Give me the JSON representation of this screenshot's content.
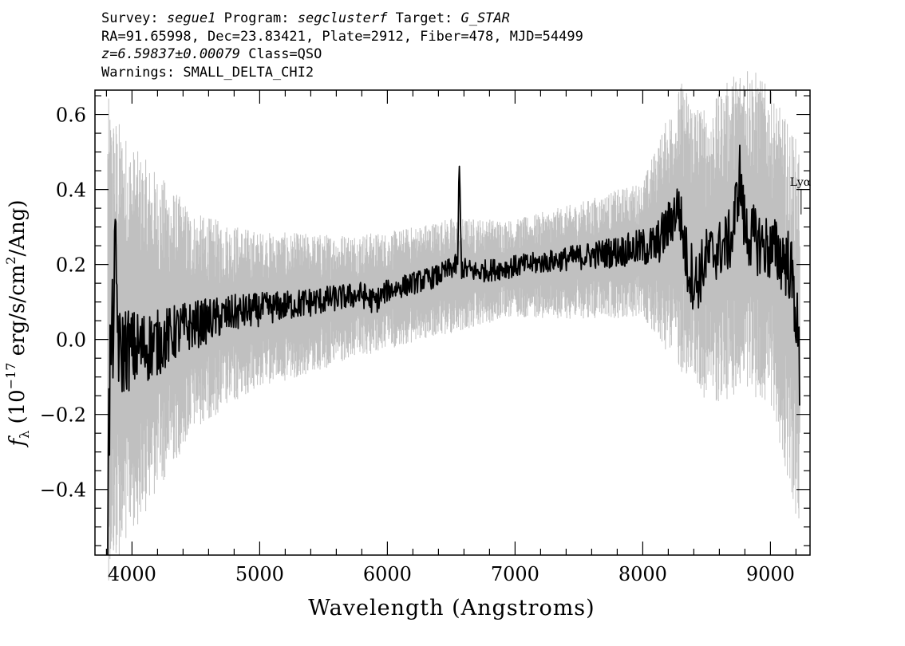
{
  "header": {
    "survey_label": "Survey:",
    "survey_value": "segue1",
    "program_label": "Program:",
    "program_value": "segclusterf",
    "target_label": "Target:",
    "target_value": "G_STAR",
    "coords_line": "RA=91.65998, Dec=23.83421, Plate=2912, Fiber=478, MJD=54499",
    "redshift_value": "z=6.59837±0.00079",
    "class_text": "Class=QSO",
    "warnings_line": "Warnings: SMALL_DELTA_CHI2"
  },
  "chart_data": {
    "type": "line",
    "xlabel": "Wavelength (Angstroms)",
    "ylabel": "f_λ (10^-17 erg/s/cm²/Ang)",
    "ylabel_parts": {
      "sym": "f",
      "sub": "λ",
      "open": " (10",
      "exp": "−17",
      "mid": " erg/s/cm",
      "sup2": "2",
      "end": "/Ang)"
    },
    "xlim": [
      3710,
      9310
    ],
    "ylim": [
      -0.575,
      0.665
    ],
    "x_ticks": [
      4000,
      5000,
      6000,
      7000,
      8000,
      9000
    ],
    "x_tick_labels": [
      "4000",
      "5000",
      "6000",
      "7000",
      "8000",
      "9000"
    ],
    "y_ticks": [
      -0.4,
      -0.2,
      0.0,
      0.2,
      0.4,
      0.6
    ],
    "y_tick_labels": [
      "−0.4",
      "−0.2",
      "0.0",
      "0.2",
      "0.4",
      "0.6"
    ],
    "grid": false,
    "line_annotation": {
      "label": "Lyα",
      "wavelength": 9240,
      "y": 0.41
    },
    "series": [
      {
        "role": "flux",
        "color": "#000000",
        "x": [
          3810,
          3830,
          3850,
          3870,
          3900,
          3950,
          4000,
          4100,
          4200,
          4300,
          4400,
          4500,
          4600,
          4800,
          5000,
          5200,
          5400,
          5600,
          5800,
          5900,
          6000,
          6200,
          6400,
          6550,
          6563,
          6580,
          6700,
          6900,
          7100,
          7300,
          7500,
          7700,
          7900,
          8100,
          8200,
          8280,
          8350,
          8420,
          8500,
          8600,
          8700,
          8760,
          8800,
          8900,
          9000,
          9100,
          9150,
          9200,
          9230
        ],
        "y": [
          -0.42,
          -0.05,
          0.02,
          0.22,
          -0.05,
          -0.02,
          -0.03,
          -0.02,
          -0.01,
          0.01,
          0.03,
          0.04,
          0.05,
          0.07,
          0.08,
          0.09,
          0.1,
          0.11,
          0.12,
          0.1,
          0.13,
          0.15,
          0.17,
          0.2,
          0.47,
          0.19,
          0.18,
          0.19,
          0.2,
          0.21,
          0.22,
          0.23,
          0.24,
          0.25,
          0.3,
          0.36,
          0.2,
          0.15,
          0.22,
          0.24,
          0.27,
          0.44,
          0.29,
          0.26,
          0.24,
          0.22,
          0.2,
          0.08,
          -0.1
        ],
        "noise": [
          0.2,
          0.17,
          0.15,
          0.14,
          0.13,
          0.12,
          0.11,
          0.1,
          0.09,
          0.08,
          0.07,
          0.065,
          0.06,
          0.05,
          0.045,
          0.04,
          0.04,
          0.035,
          0.035,
          0.035,
          0.03,
          0.03,
          0.03,
          0.03,
          0.03,
          0.03,
          0.03,
          0.03,
          0.03,
          0.03,
          0.035,
          0.04,
          0.045,
          0.06,
          0.07,
          0.07,
          0.09,
          0.09,
          0.08,
          0.08,
          0.085,
          0.09,
          0.09,
          0.09,
          0.09,
          0.1,
          0.1,
          0.11,
          0.12
        ]
      },
      {
        "role": "model/error band",
        "color": "#c0c0c0",
        "x": [
          3810,
          3900,
          4000,
          4500,
          5000,
          5500,
          6000,
          6500,
          7000,
          7500,
          8000,
          8300,
          8500,
          8800,
          9000,
          9230
        ],
        "y": [
          0.0,
          0.0,
          0.0,
          0.05,
          0.08,
          0.1,
          0.13,
          0.17,
          0.19,
          0.21,
          0.24,
          0.3,
          0.22,
          0.3,
          0.25,
          0.0
        ],
        "width": [
          0.5,
          0.45,
          0.4,
          0.22,
          0.16,
          0.14,
          0.12,
          0.12,
          0.1,
          0.12,
          0.14,
          0.3,
          0.3,
          0.35,
          0.32,
          0.4
        ]
      }
    ]
  }
}
